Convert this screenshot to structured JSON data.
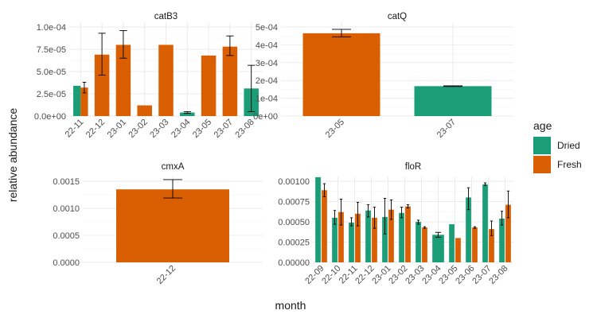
{
  "axes": {
    "xlabel": "month",
    "ylabel": "relative abundance"
  },
  "legend": {
    "title": "age",
    "position": "right",
    "entries": [
      {
        "name": "Dried",
        "color": "#1B9E77"
      },
      {
        "name": "Fresh",
        "color": "#D95F02"
      }
    ]
  },
  "chart_data": [
    {
      "type": "bar",
      "title": "catB3",
      "categories": [
        "22-11",
        "22-12",
        "23-01",
        "23-02",
        "23-03",
        "23-04",
        "23-05",
        "23-07",
        "23-08"
      ],
      "ylim": [
        0,
        0.0001
      ],
      "yticks": [
        0,
        2.5e-05,
        5e-05,
        7.5e-05,
        0.0001
      ],
      "ytick_labels": [
        "0.0e+00",
        "2.5e-05",
        "5.0e-05",
        "7.5e-05",
        "1.0e-04"
      ],
      "series": [
        {
          "name": "Dried",
          "values": [
            3.4e-05,
            null,
            null,
            null,
            null,
            4e-06,
            null,
            null,
            3.1e-05
          ],
          "err_low": [
            null,
            null,
            null,
            null,
            null,
            3e-06,
            null,
            null,
            5e-06
          ],
          "err_high": [
            null,
            null,
            null,
            null,
            null,
            5e-06,
            null,
            null,
            5.7e-05
          ]
        },
        {
          "name": "Fresh",
          "values": [
            3.2e-05,
            6.9e-05,
            8e-05,
            1.2e-05,
            8e-05,
            null,
            6.8e-05,
            7.8e-05,
            null
          ],
          "err_low": [
            2.6e-05,
            4.6e-05,
            6.5e-05,
            null,
            null,
            null,
            null,
            6.8e-05,
            null
          ],
          "err_high": [
            3.8e-05,
            9.3e-05,
            9.6e-05,
            null,
            null,
            null,
            null,
            9e-05,
            null
          ]
        }
      ]
    },
    {
      "type": "bar",
      "title": "catQ",
      "categories": [
        "23-05",
        "23-07"
      ],
      "ylim": [
        0,
        0.0005
      ],
      "yticks": [
        0,
        0.0001,
        0.0002,
        0.0003,
        0.0004,
        0.0005
      ],
      "ytick_labels": [
        "0e+00",
        "1e-04",
        "2e-04",
        "3e-04",
        "4e-04",
        "5e-04"
      ],
      "series": [
        {
          "name": "Dried",
          "values": [
            null,
            0.000168
          ],
          "err_low": [
            null,
            0.000166
          ],
          "err_high": [
            null,
            0.00017
          ]
        },
        {
          "name": "Fresh",
          "values": [
            0.000465,
            null
          ],
          "err_low": [
            0.000445,
            null
          ],
          "err_high": [
            0.000487,
            null
          ]
        }
      ]
    },
    {
      "type": "bar",
      "title": "cmxA",
      "categories": [
        "22-12"
      ],
      "ylim": [
        0,
        0.0015
      ],
      "yticks": [
        0,
        0.0005,
        0.001,
        0.0015
      ],
      "ytick_labels": [
        "0.0000",
        "0.0005",
        "0.0010",
        "0.0015"
      ],
      "series": [
        {
          "name": "Dried",
          "values": [
            null
          ],
          "err_low": [
            null
          ],
          "err_high": [
            null
          ]
        },
        {
          "name": "Fresh",
          "values": [
            0.00135
          ],
          "err_low": [
            0.00119
          ],
          "err_high": [
            0.00153
          ]
        }
      ]
    },
    {
      "type": "bar",
      "title": "floR",
      "categories": [
        "22-09",
        "22-10",
        "22-11",
        "22-12",
        "23-01",
        "23-02",
        "23-03",
        "23-04",
        "23-05",
        "23-06",
        "23-07",
        "23-08"
      ],
      "ylim": [
        0,
        0.001
      ],
      "yticks": [
        0,
        0.00025,
        0.0005,
        0.00075,
        0.001
      ],
      "ytick_labels": [
        "0.00000",
        "0.00025",
        "0.00050",
        "0.00075",
        "0.00100"
      ],
      "series": [
        {
          "name": "Dried",
          "values": [
            0.00105,
            0.00055,
            0.00049,
            0.00064,
            0.00056,
            0.00061,
            0.0005,
            0.00034,
            0.00047,
            0.0008,
            0.00096,
            0.00054
          ],
          "err_low": [
            null,
            0.00047,
            0.00045,
            0.00056,
            0.00035,
            0.00055,
            0.00047,
            0.00031,
            null,
            0.00065,
            0.00095,
            0.00046
          ],
          "err_high": [
            null,
            0.00064,
            0.00055,
            0.00071,
            0.00079,
            0.00068,
            0.00052,
            0.00037,
            null,
            0.00092,
            0.00098,
            0.00063
          ]
        },
        {
          "name": "Fresh",
          "values": [
            0.00089,
            0.00062,
            0.0006,
            0.00055,
            0.00065,
            0.00069,
            0.00043,
            null,
            0.0003,
            0.00043,
            0.00041,
            0.00071
          ],
          "err_low": [
            0.00081,
            0.00046,
            0.00045,
            0.00042,
            0.00053,
            0.00067,
            0.00042,
            null,
            null,
            0.00042,
            0.00033,
            0.00055
          ],
          "err_high": [
            0.00097,
            0.00078,
            0.00074,
            0.00068,
            0.00077,
            0.00071,
            0.00044,
            null,
            null,
            0.00044,
            0.00051,
            0.00088
          ]
        }
      ]
    }
  ]
}
